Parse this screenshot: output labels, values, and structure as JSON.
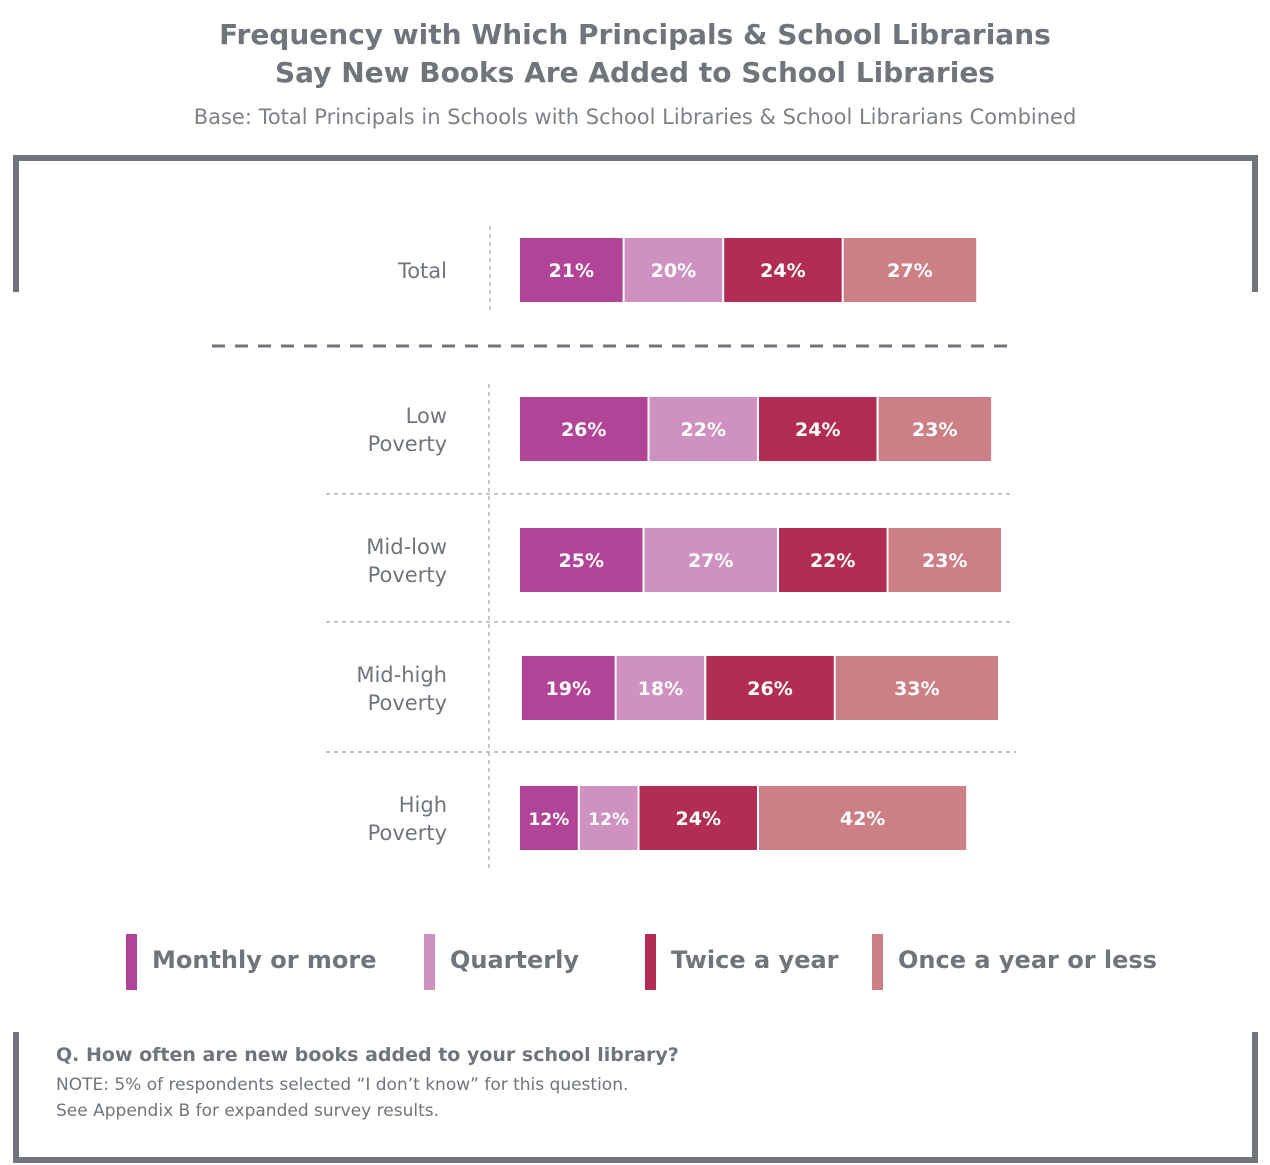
{
  "title_line1": "Frequency with Which Principals & School Librarians",
  "title_line2": "Say New Books Are Added to School Libraries",
  "subtitle": "Base: Total Principals in Schools with School Libraries & School Librarians Combined",
  "legend": [
    {
      "label": "Monthly or more",
      "color": "#b24497"
    },
    {
      "label": "Quarterly",
      "color": "#cf92c0"
    },
    {
      "label": "Twice a year",
      "color": "#b22d54"
    },
    {
      "label": "Once a year or less",
      "color": "#cc7f84"
    }
  ],
  "chart_data": {
    "type": "bar",
    "orientation": "horizontal",
    "stacked": true,
    "categories": [
      [
        "Total"
      ],
      [
        "Low",
        "Poverty"
      ],
      [
        "Mid-low",
        "Poverty"
      ],
      [
        "Mid-high",
        "Poverty"
      ],
      [
        "High",
        "Poverty"
      ]
    ],
    "series": [
      {
        "name": "Monthly or more",
        "color": "#b24497",
        "values": [
          21,
          26,
          25,
          19,
          12
        ]
      },
      {
        "name": "Quarterly",
        "color": "#cf92c0",
        "values": [
          20,
          22,
          27,
          18,
          12
        ]
      },
      {
        "name": "Twice a year",
        "color": "#b22d54",
        "values": [
          24,
          24,
          22,
          26,
          24
        ]
      },
      {
        "name": "Once a year or less",
        "color": "#cc7f84",
        "values": [
          27,
          23,
          23,
          33,
          42
        ]
      }
    ],
    "value_suffix": "%",
    "legend_position": "bottom",
    "grid": false
  },
  "footer": {
    "question": "Q. How often are new books added to your school library?",
    "note1": "NOTE: 5% of respondents selected “I don’t know” for this question.",
    "note2": "See Appendix B for expanded survey results."
  }
}
